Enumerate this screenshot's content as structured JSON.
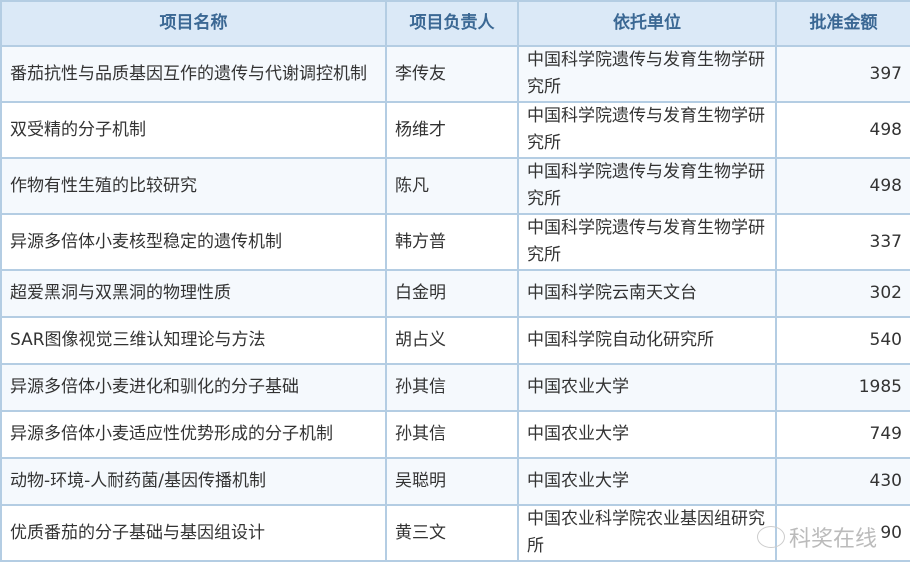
{
  "headers": [
    "项目名称",
    "项目负责人",
    "依托单位",
    "批准金额"
  ],
  "rows": [
    {
      "name": "番茄抗性与品质基因互作的遗传与代谢调控机制",
      "leader": "李传友",
      "unit": "中国科学院遗传与发育生物学研究所",
      "amount": "397"
    },
    {
      "name": "双受精的分子机制",
      "leader": "杨维才",
      "unit": "中国科学院遗传与发育生物学研究所",
      "amount": "498"
    },
    {
      "name": "作物有性生殖的比较研究",
      "leader": "陈凡",
      "unit": "中国科学院遗传与发育生物学研究所",
      "amount": "498"
    },
    {
      "name": "异源多倍体小麦核型稳定的遗传机制",
      "leader": "韩方普",
      "unit": "中国科学院遗传与发育生物学研究所",
      "amount": "337"
    },
    {
      "name": "超爱黑洞与双黑洞的物理性质",
      "leader": "白金明",
      "unit": "中国科学院云南天文台",
      "amount": "302"
    },
    {
      "name": "SAR图像视觉三维认知理论与方法",
      "leader": "胡占义",
      "unit": "中国科学院自动化研究所",
      "amount": "540"
    },
    {
      "name": "异源多倍体小麦进化和驯化的分子基础",
      "leader": "孙其信",
      "unit": "中国农业大学",
      "amount": "1985"
    },
    {
      "name": "异源多倍体小麦适应性优势形成的分子机制",
      "leader": "孙其信",
      "unit": "中国农业大学",
      "amount": "749"
    },
    {
      "name": "动物-环境-人耐药菌/基因传播机制",
      "leader": "吴聪明",
      "unit": "中国农业大学",
      "amount": "430"
    },
    {
      "name": "优质番茄的分子基础与基因组设计",
      "leader": "黄三文",
      "unit": "中国农业科学院农业基因组研究所",
      "amount": "90"
    }
  ],
  "watermark": "科奖在线",
  "colors": {
    "header_bg": "#dbe9f7",
    "header_text": "#3b6894",
    "border": "#b4cde3"
  }
}
